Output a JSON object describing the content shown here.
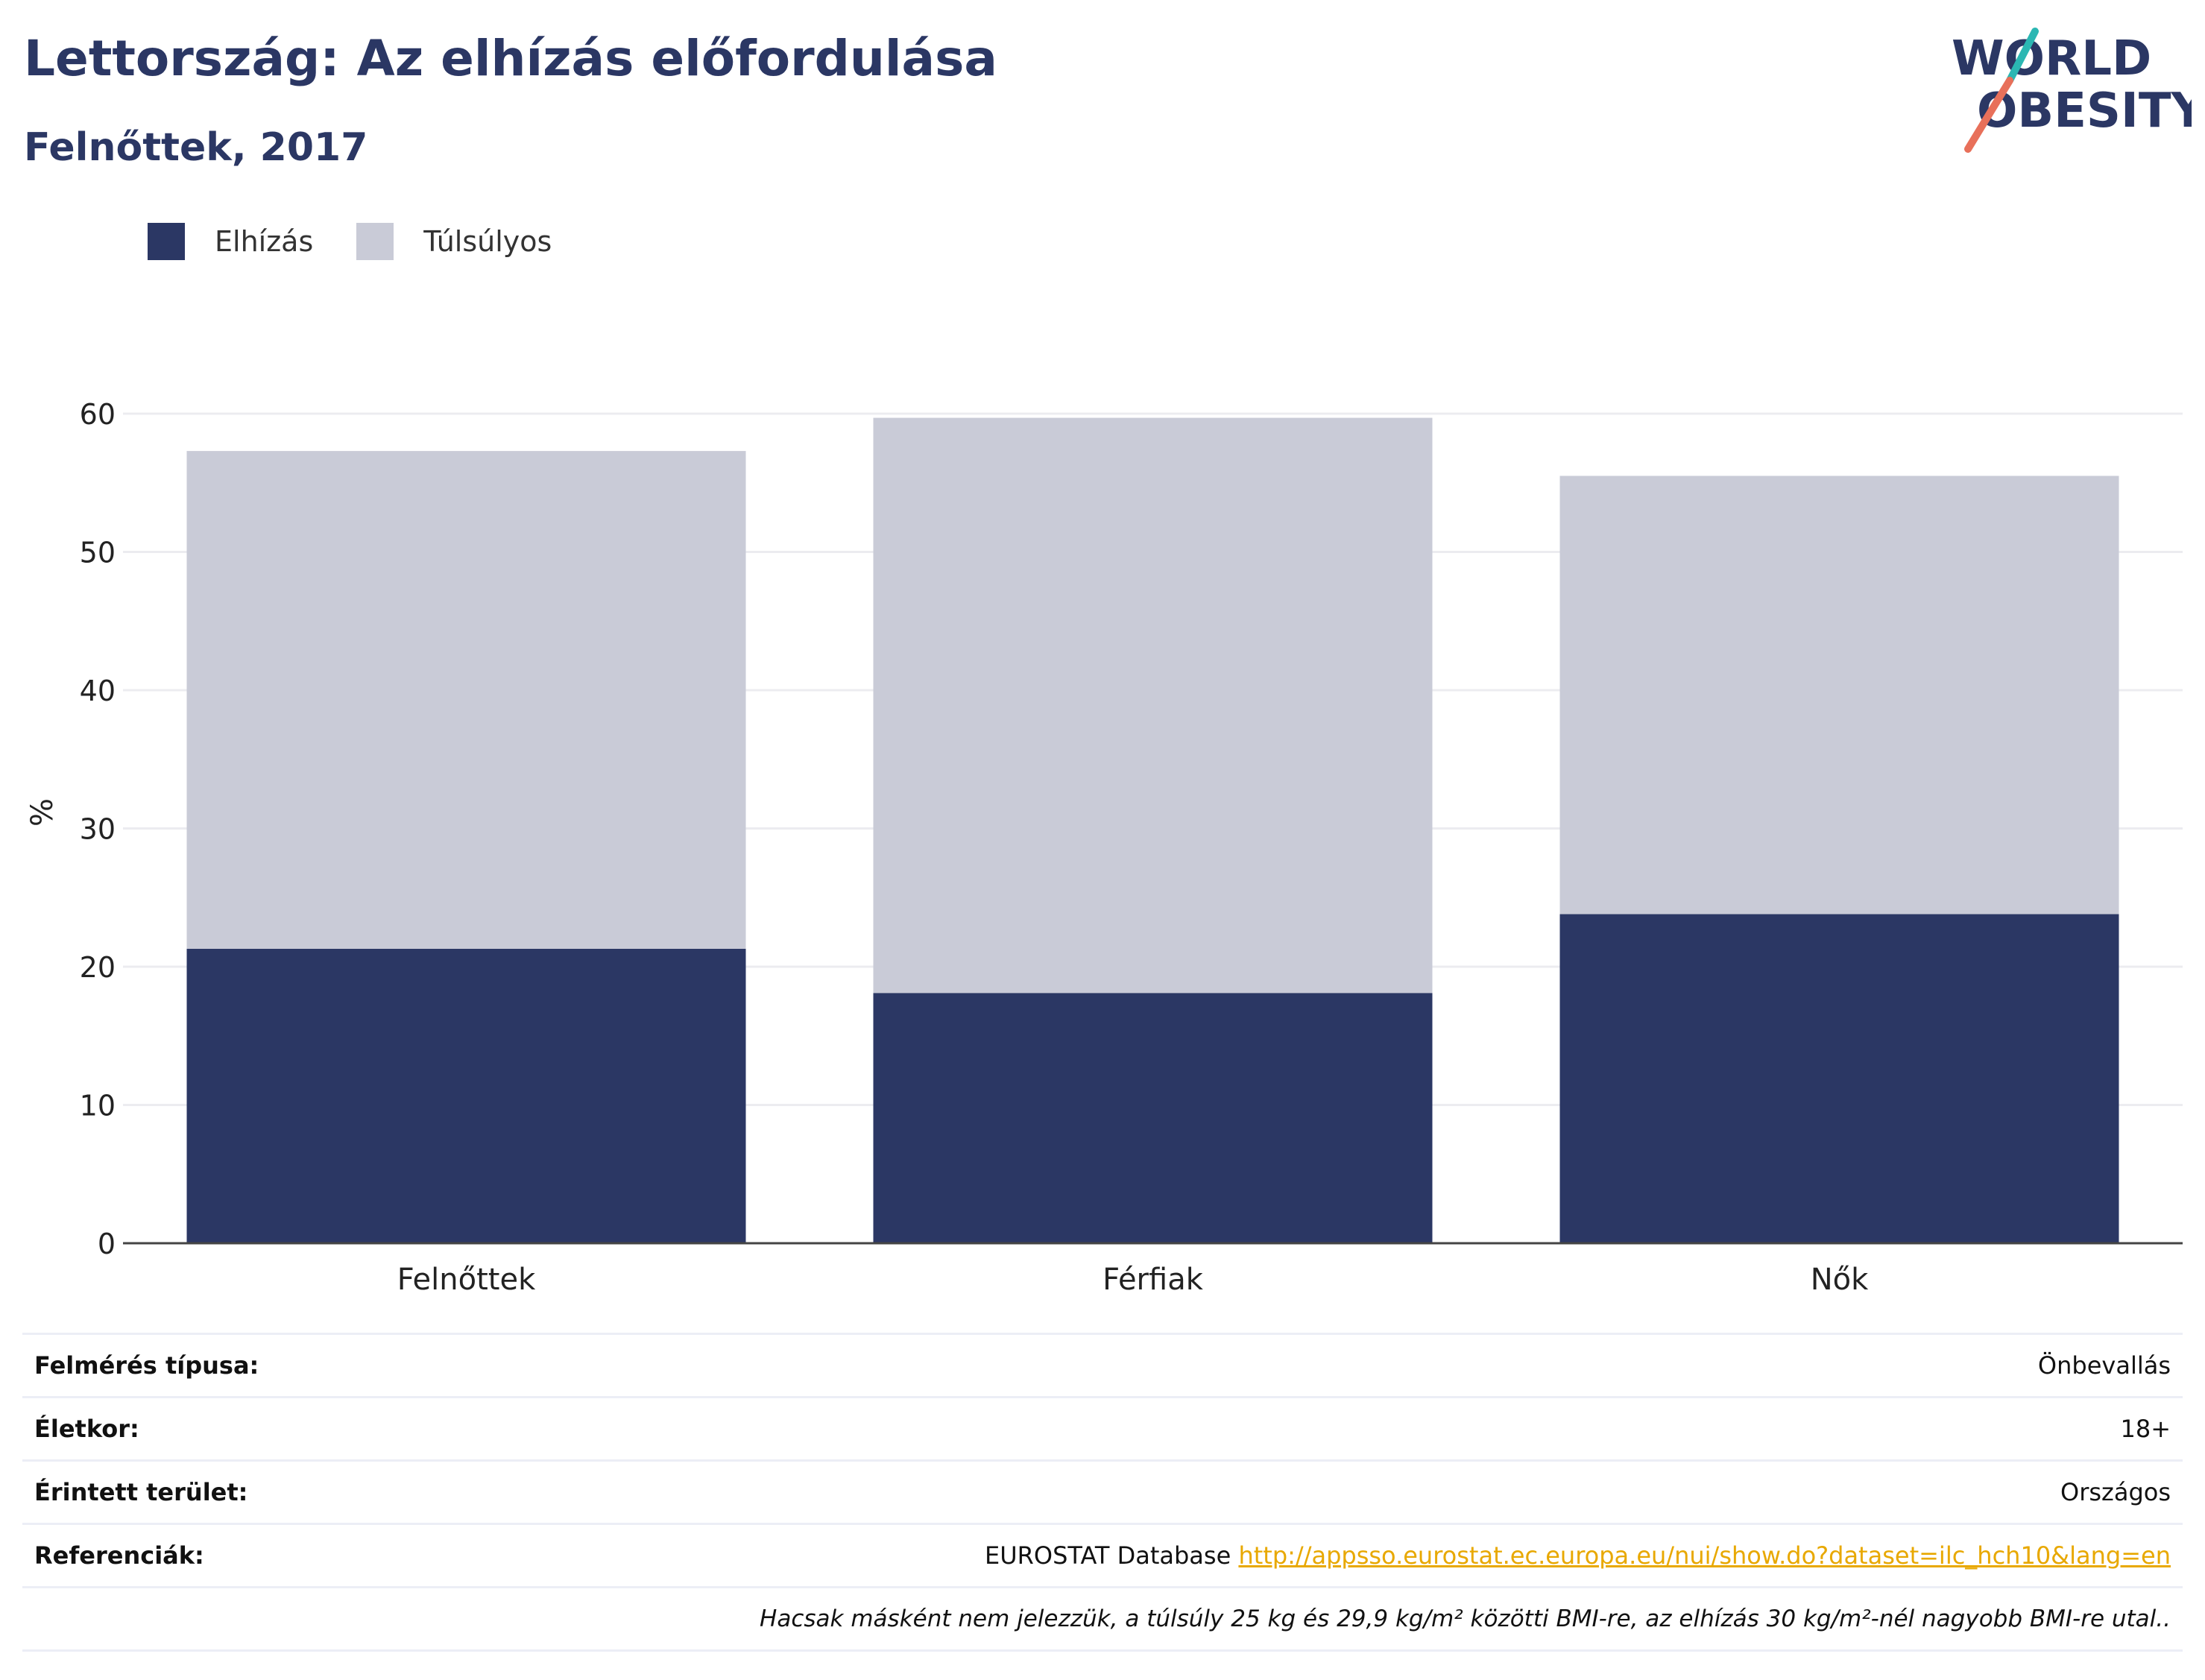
{
  "header": {
    "title": "Lettország: Az elhízás előfordulása",
    "subtitle": "Felnőttek, 2017"
  },
  "logo": {
    "line1": "WORLD",
    "line2": "OBESITY",
    "colors": {
      "navy": "#2b3764",
      "teal": "#2bb7b3",
      "coral": "#e8705a"
    }
  },
  "chart_data": {
    "type": "bar",
    "stacked": true,
    "categories": [
      "Felnőttek",
      "Férfiak",
      "Nők"
    ],
    "series": [
      {
        "name": "Elhízás",
        "color": "#2b3764",
        "values": [
          21.3,
          18.1,
          23.8
        ]
      },
      {
        "name": "Túlsúlyos",
        "color": "#c9cbd7",
        "values": [
          36.0,
          41.6,
          31.7
        ]
      }
    ],
    "ylabel": "%",
    "xlabel": "",
    "ylim": [
      0,
      60
    ],
    "yticks": [
      0,
      10,
      20,
      30,
      40,
      50,
      60
    ],
    "grid": true,
    "legend": "top-left"
  },
  "info": {
    "rows": [
      {
        "label": "Felmérés típusa:",
        "value": "Önbevallás"
      },
      {
        "label": "Életkor:",
        "value": "18+"
      },
      {
        "label": "Érintett terület:",
        "value": "Országos"
      }
    ],
    "references": {
      "label": "Referenciák:",
      "source": "EUROSTAT Database",
      "link": "http://appsso.eurostat.ec.europa.eu/nui/show.do?dataset=ilc_hch10&lang=en"
    },
    "note": "Hacsak másként nem jelezzük, a túlsúly 25 kg és 29,9 kg/m² közötti BMI-re, az elhízás 30 kg/m²-nél nagyobb BMI-re utal.."
  }
}
